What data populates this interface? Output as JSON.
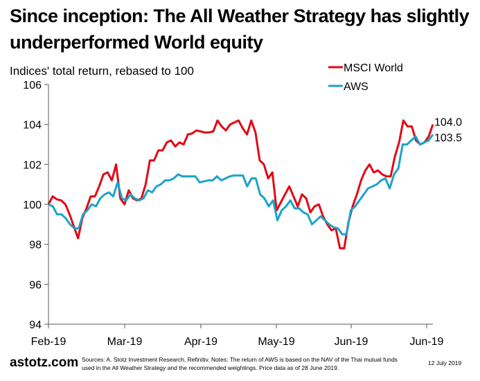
{
  "title": "Since inception: The All Weather Strategy has slightly underperformed World equity",
  "subtitle": "Indices' total return, rebased to 100",
  "footer": {
    "brand": "astotz.com",
    "note": "Sources: A. Stotz Investment Research, Refinitiv. Notes: The return of AWS is based on the NAV of the Thai mutual funds used in the All Weather Strategy and the recommended weightings. Price data as of 28 June 2019.",
    "date": "12 July 2019"
  },
  "colors": {
    "msci": "#e30613",
    "aws": "#1aa3cc",
    "axis": "#595959"
  },
  "chart_data": {
    "type": "line",
    "title": "Since inception: The All Weather Strategy has slightly underperformed World equity",
    "ylabel": "Indices' total return, rebased to 100",
    "xlabel": "",
    "ylim": [
      94,
      106
    ],
    "yticks": [
      94,
      96,
      98,
      100,
      102,
      104,
      106
    ],
    "ytick_labels": [
      "94",
      "96",
      "98",
      "100",
      "102",
      "104",
      "106"
    ],
    "xtick_labels": [
      "Feb-19",
      "Mar-19",
      "Apr-19",
      "May-19",
      "Jun-19",
      "Jun-19"
    ],
    "grid": false,
    "legend": "top-right",
    "series": [
      {
        "name": "MSCI World",
        "end_label": "104.0",
        "values": [
          100.0,
          100.4,
          100.25,
          100.2,
          100.0,
          99.5,
          98.9,
          98.3,
          99.3,
          99.8,
          100.4,
          100.4,
          100.9,
          101.5,
          101.6,
          101.2,
          102.0,
          100.3,
          100.0,
          100.7,
          100.3,
          100.2,
          100.3,
          101.0,
          102.2,
          102.2,
          102.7,
          102.7,
          103.1,
          103.2,
          102.9,
          103.1,
          103.0,
          103.5,
          103.55,
          103.7,
          103.65,
          103.6,
          103.6,
          103.65,
          104.2,
          103.9,
          103.7,
          104.0,
          104.1,
          104.2,
          103.8,
          103.5,
          104.2,
          103.6,
          102.2,
          102.0,
          101.3,
          101.6,
          99.7,
          100.1,
          100.5,
          100.9,
          100.4,
          99.9,
          100.5,
          100.3,
          99.6,
          99.9,
          100.0,
          99.4,
          99.0,
          98.7,
          98.8,
          97.8,
          97.8,
          99.1,
          99.9,
          100.5,
          101.2,
          101.7,
          102.0,
          101.6,
          101.7,
          101.5,
          101.4,
          101.4,
          102.4,
          103.1,
          104.2,
          103.9,
          103.9,
          103.2,
          103.0,
          103.1,
          103.4,
          104.0
        ]
      },
      {
        "name": "AWS",
        "end_label": "103.5",
        "values": [
          100.0,
          99.9,
          99.5,
          99.5,
          99.3,
          99.0,
          98.8,
          98.8,
          99.5,
          99.7,
          100.0,
          99.9,
          100.3,
          100.5,
          100.6,
          100.4,
          101.1,
          100.3,
          100.2,
          100.5,
          100.3,
          100.2,
          100.3,
          100.7,
          100.6,
          100.9,
          101.0,
          101.2,
          101.2,
          101.3,
          101.5,
          101.4,
          101.4,
          101.4,
          101.4,
          101.1,
          101.15,
          101.2,
          101.2,
          101.4,
          101.2,
          101.3,
          101.4,
          101.45,
          101.45,
          101.45,
          100.9,
          101.3,
          101.3,
          100.5,
          100.3,
          99.9,
          100.2,
          99.2,
          99.7,
          99.9,
          100.2,
          99.8,
          99.8,
          99.6,
          99.5,
          99.0,
          99.2,
          99.4,
          99.2,
          99.0,
          98.85,
          98.8,
          98.5,
          98.5,
          99.7,
          99.9,
          100.2,
          100.5,
          100.8,
          100.9,
          101.0,
          101.2,
          101.3,
          100.8,
          101.5,
          101.8,
          103.0,
          103.0,
          103.2,
          103.4,
          103.0,
          103.1,
          103.2,
          103.5
        ]
      }
    ]
  }
}
